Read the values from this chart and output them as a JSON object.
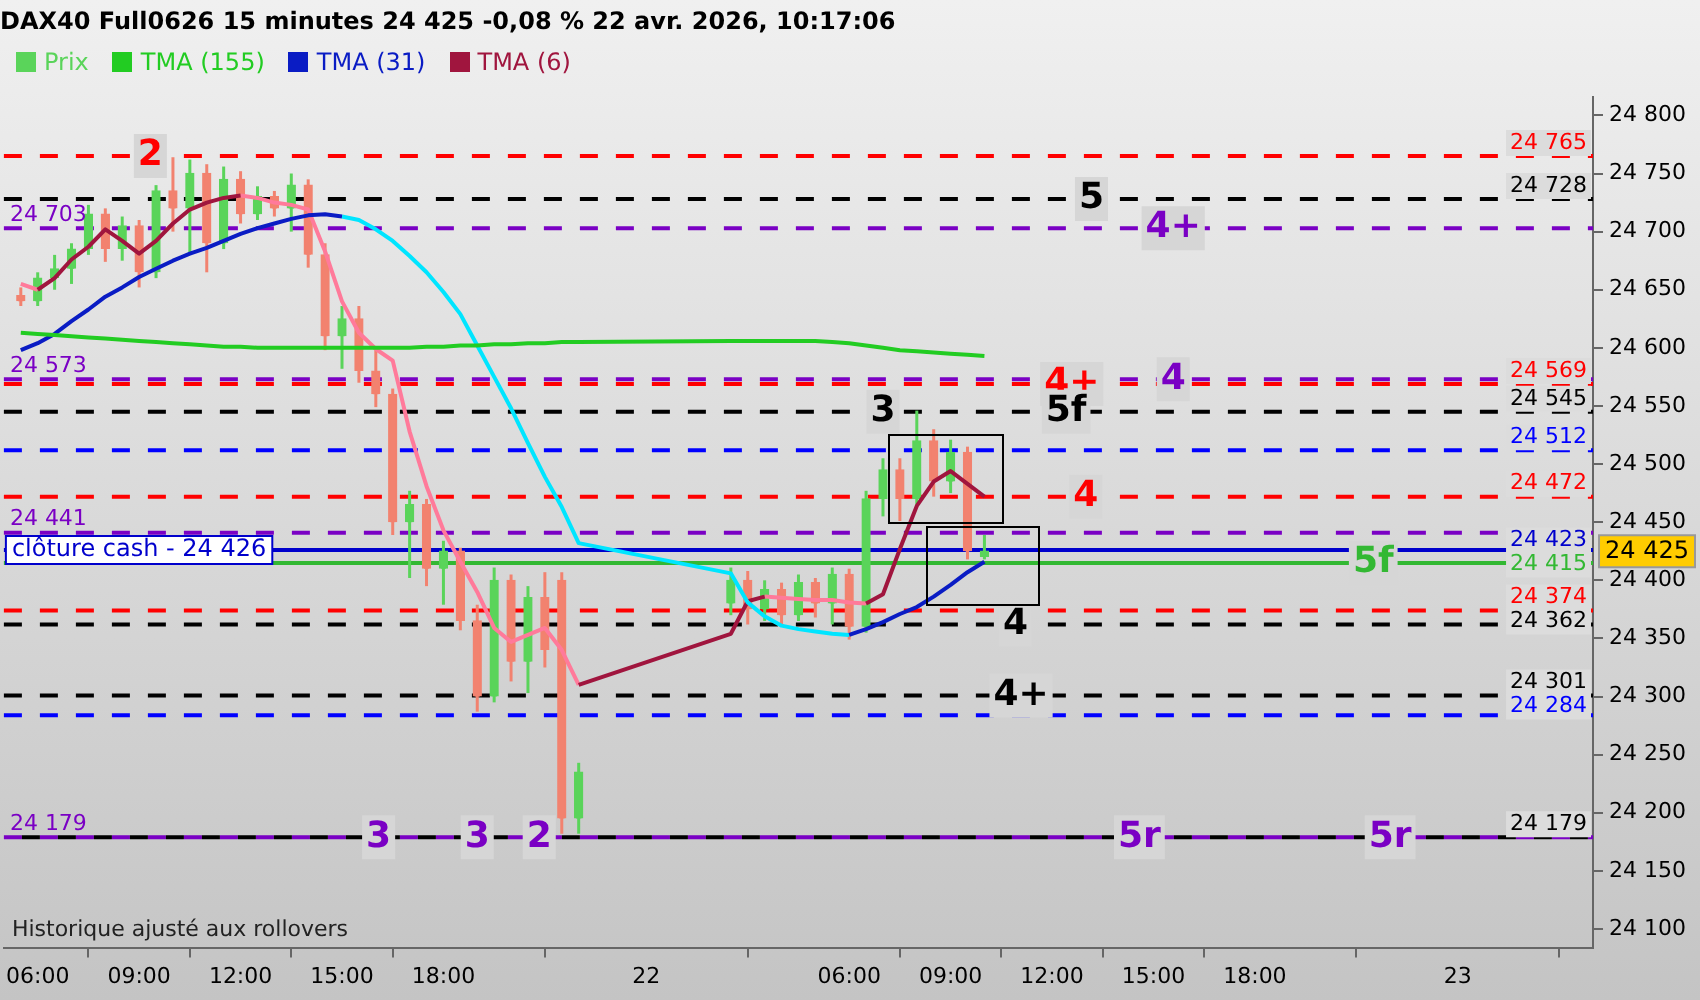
{
  "chart_data": {
    "type": "candlestick",
    "title": "DAX40 Full0626 15 minutes 24 425 -0,08 % 22 avr. 2026, 10:17:06",
    "x": [
      "2026-04-21T05:30",
      "2026-04-21T06:00",
      "2026-04-21T06:30",
      "2026-04-21T07:00",
      "2026-04-21T07:30",
      "2026-04-21T08:00",
      "2026-04-21T08:30",
      "2026-04-21T09:00",
      "2026-04-21T09:30",
      "2026-04-21T10:00",
      "2026-04-21T10:30",
      "2026-04-21T11:00",
      "2026-04-21T11:30",
      "2026-04-21T12:00",
      "2026-04-21T12:30",
      "2026-04-21T13:00",
      "2026-04-21T13:30",
      "2026-04-21T14:00",
      "2026-04-21T14:30",
      "2026-04-21T15:00",
      "2026-04-21T15:30",
      "2026-04-21T16:00",
      "2026-04-21T16:30",
      "2026-04-21T17:00",
      "2026-04-21T17:30",
      "2026-04-21T18:00",
      "2026-04-21T18:30",
      "2026-04-21T19:00",
      "2026-04-21T19:30",
      "2026-04-21T20:00",
      "2026-04-21T20:30",
      "2026-04-21T21:00",
      "2026-04-21T21:30",
      "2026-04-21T22:00",
      "2026-04-22T02:30",
      "2026-04-22T03:00",
      "2026-04-22T03:30",
      "2026-04-22T04:00",
      "2026-04-22T04:30",
      "2026-04-22T05:00",
      "2026-04-22T05:30",
      "2026-04-22T06:00",
      "2026-04-22T06:30",
      "2026-04-22T07:00",
      "2026-04-22T07:30",
      "2026-04-22T08:00",
      "2026-04-22T08:30",
      "2026-04-22T09:00",
      "2026-04-22T09:30",
      "2026-04-22T10:00"
    ],
    "series": [
      {
        "name": "Prix",
        "colors": [
          "#f2826f",
          "#5ad45a",
          "#5ad45a",
          "#5ad45a",
          "#5ad45a",
          "#f2826f",
          "#5ad45a",
          "#f2826f",
          "#5ad45a",
          "#f2826f",
          "#5ad45a",
          "#f2826f",
          "#5ad45a",
          "#f2826f",
          "#5ad45a",
          "#f2826f",
          "#5ad45a",
          "#f2826f",
          "#f2826f",
          "#5ad45a",
          "#f2826f",
          "#f2826f",
          "#f2826f",
          "#5ad45a",
          "#f2826f",
          "#5ad45a",
          "#f2826f",
          "#f2826f",
          "#5ad45a",
          "#f2826f",
          "#5ad45a",
          "#f2826f",
          "#f2826f",
          "#5ad45a",
          "#5ad45a",
          "#f2826f",
          "#5ad45a",
          "#f2826f",
          "#5ad45a",
          "#f2826f",
          "#5ad45a",
          "#f2826f",
          "#5ad45a",
          "#5ad45a",
          "#f2826f",
          "#5ad45a",
          "#f2826f",
          "#5ad45a",
          "#f2826f",
          "#5ad45a"
        ],
        "ohlc": [
          [
            24645,
            24652,
            24636,
            24640
          ],
          [
            24640,
            24665,
            24636,
            24660
          ],
          [
            24660,
            24680,
            24650,
            24668
          ],
          [
            24668,
            24690,
            24655,
            24685
          ],
          [
            24685,
            24723,
            24680,
            24715
          ],
          [
            24715,
            24720,
            24674,
            24685
          ],
          [
            24685,
            24713,
            24675,
            24705
          ],
          [
            24705,
            24710,
            24652,
            24665
          ],
          [
            24665,
            24740,
            24660,
            24735
          ],
          [
            24735,
            24764,
            24700,
            24720
          ],
          [
            24720,
            24762,
            24680,
            24750
          ],
          [
            24750,
            24758,
            24665,
            24690
          ],
          [
            24690,
            24756,
            24685,
            24745
          ],
          [
            24745,
            24752,
            24707,
            24715
          ],
          [
            24715,
            24739,
            24710,
            24730
          ],
          [
            24730,
            24735,
            24713,
            24720
          ],
          [
            24720,
            24750,
            24700,
            24740
          ],
          [
            24740,
            24745,
            24669,
            24680
          ],
          [
            24680,
            24690,
            24598,
            24610
          ],
          [
            24610,
            24636,
            24582,
            24625
          ],
          [
            24625,
            24636,
            24570,
            24580
          ],
          [
            24580,
            24598,
            24549,
            24560
          ],
          [
            24560,
            24565,
            24439,
            24450
          ],
          [
            24450,
            24477,
            24402,
            24465
          ],
          [
            24465,
            24470,
            24395,
            24410
          ],
          [
            24410,
            24434,
            24379,
            24425
          ],
          [
            24425,
            24428,
            24357,
            24365
          ],
          [
            24365,
            24379,
            24287,
            24300
          ],
          [
            24300,
            24411,
            24295,
            24400
          ],
          [
            24400,
            24405,
            24313,
            24330
          ],
          [
            24330,
            24395,
            24303,
            24385
          ],
          [
            24385,
            24407,
            24325,
            24340
          ],
          [
            24400,
            24407,
            24182,
            24195
          ],
          [
            24195,
            24243,
            24182,
            24235
          ],
          [
            24380,
            24411,
            24370,
            24400
          ],
          [
            24400,
            24408,
            24362,
            24375
          ],
          [
            24375,
            24400,
            24365,
            24392
          ],
          [
            24392,
            24398,
            24362,
            24370
          ],
          [
            24370,
            24405,
            24365,
            24398
          ],
          [
            24398,
            24402,
            24368,
            24380
          ],
          [
            24380,
            24411,
            24362,
            24405
          ],
          [
            24405,
            24410,
            24349,
            24360
          ],
          [
            24360,
            24477,
            24355,
            24470
          ],
          [
            24470,
            24505,
            24455,
            24495
          ],
          [
            24495,
            24505,
            24451,
            24470
          ],
          [
            24470,
            24546,
            24465,
            24520
          ],
          [
            24520,
            24530,
            24472,
            24485
          ],
          [
            24485,
            24521,
            24475,
            24510
          ],
          [
            24510,
            24515,
            24418,
            24425
          ],
          [
            24420,
            24439,
            24418,
            24425
          ]
        ]
      },
      {
        "name": "TMA (155)",
        "type": "line",
        "color": "#22cc22",
        "values": [
          24613,
          24612,
          24611,
          24610,
          24609,
          24608,
          24607,
          24606,
          24605,
          24604,
          24603,
          24602,
          24601,
          24601,
          24600,
          24600,
          24600,
          24600,
          24600,
          24600,
          24600,
          24600,
          24600,
          24600,
          24601,
          24601,
          24602,
          24602,
          24603,
          24603,
          24604,
          24604,
          24605,
          24605,
          24606,
          24606,
          24606,
          24606,
          24606,
          24606,
          24605,
          24604,
          24602,
          24600,
          24598,
          24597,
          24596,
          24595,
          24594,
          24593
        ]
      },
      {
        "name": "TMA (31)",
        "type": "line",
        "color": "#0a1cc4",
        "values": [
          24598,
          24604,
          24612,
          24623,
          24633,
          24644,
          24652,
          24661,
          24668,
          24675,
          24681,
          24686,
          24692,
          24698,
          24703,
          24707,
          24711,
          24714,
          24715,
          24713,
          null,
          null,
          null,
          null,
          null,
          null,
          null,
          null,
          null,
          null,
          null,
          null,
          null,
          null,
          null,
          null,
          null,
          null,
          null,
          null,
          null,
          24353,
          24358,
          24364,
          24371,
          24377,
          24386,
          24396,
          24407,
          24416
        ]
      },
      {
        "type": "line",
        "color": "#00e5ff",
        "values": [
          null,
          null,
          null,
          null,
          null,
          null,
          null,
          null,
          null,
          null,
          null,
          null,
          null,
          null,
          null,
          null,
          null,
          null,
          null,
          24713,
          24710,
          24702,
          24692,
          24679,
          24665,
          24648,
          24629,
          24602,
          24575,
          24548,
          24518,
          24489,
          24463,
          24432,
          24406,
          24381,
          24369,
          24361,
          24358,
          24356,
          24354,
          24353,
          null,
          null,
          null,
          null,
          null,
          null,
          null,
          null
        ]
      },
      {
        "name": "TMA (6)",
        "type": "line",
        "color": "#a0153e",
        "values": [
          null,
          24650,
          24660,
          24676,
          24687,
          24702,
          24692,
          24681,
          24692,
          24707,
          24719,
          24725,
          24729,
          24731,
          null,
          null,
          null,
          null,
          null,
          null,
          null,
          null,
          null,
          null,
          null,
          null,
          null,
          null,
          null,
          null,
          null,
          null,
          null,
          24310,
          24354,
          24382,
          24386,
          null,
          null,
          null,
          null,
          null,
          24380,
          24388,
          24427,
          24464,
          24485,
          24494,
          24483,
          24472
        ]
      },
      {
        "type": "line",
        "color": "#ff7a9a",
        "values": [
          24655,
          24650,
          null,
          null,
          null,
          null,
          null,
          null,
          null,
          null,
          null,
          null,
          null,
          24731,
          24729,
          24725,
          24723,
          24719,
          24683,
          24640,
          24613,
          24599,
          24589,
          24528,
          24481,
          24443,
          24416,
          24390,
          24359,
          24347,
          24353,
          24359,
          24340,
          24310,
          null,
          null,
          24386,
          24385,
          24384,
          24383,
          24383,
          24381,
          24380,
          null,
          null,
          null,
          null,
          null,
          null,
          null
        ]
      }
    ],
    "xlim": [
      "2026-04-21T05:00",
      "2026-04-23T04:00"
    ],
    "xticks": [
      {
        "value": "2026-04-21T06:00",
        "label": "06:00"
      },
      {
        "value": "2026-04-21T09:00",
        "label": "09:00"
      },
      {
        "value": "2026-04-21T12:00",
        "label": "12:00"
      },
      {
        "value": "2026-04-21T15:00",
        "label": "15:00"
      },
      {
        "value": "2026-04-21T18:00",
        "label": "18:00"
      },
      {
        "value": "2026-04-22T00:00",
        "label": "22"
      },
      {
        "value": "2026-04-22T06:00",
        "label": "06:00"
      },
      {
        "value": "2026-04-22T09:00",
        "label": "09:00"
      },
      {
        "value": "2026-04-22T12:00",
        "label": "12:00"
      },
      {
        "value": "2026-04-22T15:00",
        "label": "15:00"
      },
      {
        "value": "2026-04-22T18:00",
        "label": "18:00"
      },
      {
        "value": "2026-04-23T00:00",
        "label": "23"
      }
    ],
    "ylim": [
      24084,
      24816
    ],
    "yticks": [
      {
        "value": 24100,
        "label": "24 100"
      },
      {
        "value": 24150,
        "label": "24 150"
      },
      {
        "value": 24200,
        "label": "24 200"
      },
      {
        "value": 24250,
        "label": "24 250"
      },
      {
        "value": 24300,
        "label": "24 300"
      },
      {
        "value": 24350,
        "label": "24 350"
      },
      {
        "value": 24400,
        "label": "24 400"
      },
      {
        "value": 24450,
        "label": "24 450"
      },
      {
        "value": 24500,
        "label": "24 500"
      },
      {
        "value": 24550,
        "label": "24 550"
      },
      {
        "value": 24600,
        "label": "24 600"
      },
      {
        "value": 24650,
        "label": "24 650"
      },
      {
        "value": 24700,
        "label": "24 700"
      },
      {
        "value": 24750,
        "label": "24 750"
      },
      {
        "value": 24800,
        "label": "24 800"
      }
    ],
    "legend": "top left",
    "ref_lines": [
      {
        "axis": "y",
        "value": 24765,
        "label": "24 765",
        "color": "#ff0000",
        "line_style": "dashed"
      },
      {
        "axis": "y",
        "value": 24728,
        "label": "24 728",
        "color": "#000000",
        "line_style": "dashed"
      },
      {
        "axis": "y",
        "value": 24703,
        "color": "#7a00c4",
        "line_style": "dashed"
      },
      {
        "axis": "y",
        "value": 24573,
        "color": "#7a00c4",
        "line_style": "dashed"
      },
      {
        "axis": "y",
        "value": 24569,
        "label": "24 569",
        "color": "#ff0000",
        "line_style": "dashed"
      },
      {
        "axis": "y",
        "value": 24545,
        "label": "24 545",
        "color": "#000000",
        "line_style": "dashed"
      },
      {
        "axis": "y",
        "value": 24512,
        "label": "24 512",
        "color": "#0000ff",
        "line_style": "dashed"
      },
      {
        "axis": "y",
        "value": 24472,
        "label": "24 472",
        "color": "#ff0000",
        "line_style": "dashed"
      },
      {
        "axis": "y",
        "value": 24441,
        "color": "#7a00c4",
        "line_style": "dashed"
      },
      {
        "axis": "y",
        "value": 24426,
        "label": "clôture cash - 24 426",
        "color": "#0000cc",
        "line_style": "solid"
      },
      {
        "axis": "y",
        "value": 24415,
        "color": "#33b833",
        "line_style": "solid"
      },
      {
        "axis": "y",
        "value": 24374,
        "label": "24 374",
        "color": "#ff0000",
        "line_style": "dashed"
      },
      {
        "axis": "y",
        "value": 24362,
        "label": "24 362",
        "color": "#000000",
        "line_style": "dashed"
      },
      {
        "axis": "y",
        "value": 24301,
        "label": "24 301",
        "color": "#000000",
        "line_style": "dashed"
      },
      {
        "axis": "y",
        "value": 24284,
        "label": "24 284",
        "color": "#0000ff",
        "line_style": "dashed"
      },
      {
        "axis": "y",
        "value": 24179,
        "color": "#7a00c4",
        "line_style": "dashed"
      },
      {
        "axis": "y",
        "value": 24179,
        "label": "24 179",
        "color": "#000000",
        "line_style": "dashed"
      }
    ],
    "annotations": [
      "Historique ajusté aux rollovers",
      "24 425",
      {
        "text": "24 703",
        "x": "2026-04-21T05:00",
        "y": 24703
      },
      {
        "text": "24 573",
        "x": "2026-04-21T05:00",
        "y": 24573
      },
      {
        "text": "24 441",
        "x": "2026-04-21T05:00",
        "y": 24441
      },
      {
        "text": "24 179",
        "x": "2026-04-21T05:00",
        "y": 24179
      },
      {
        "text": "24 423",
        "x": "2026-04-23T04:00",
        "y": 24423
      },
      {
        "text": "24 415",
        "x": "2026-04-23T04:00",
        "y": 24415
      },
      {
        "text": "2",
        "x": "2026-04-21T09:20",
        "y": 24765
      },
      {
        "text": "5",
        "x": "2026-04-22T13:10",
        "y": 24728
      },
      {
        "text": "4+",
        "x": "2026-04-22T15:35",
        "y": 24703
      },
      {
        "text": "4+",
        "x": "2026-04-22T12:35",
        "y": 24569
      },
      {
        "text": "4",
        "x": "2026-04-22T15:35",
        "y": 24573
      },
      {
        "text": "3",
        "x": "2026-04-22T07:00",
        "y": 24545
      },
      {
        "text": "5f",
        "x": "2026-04-22T12:25",
        "y": 24545
      },
      {
        "text": "4",
        "x": "2026-04-22T13:00",
        "y": 24472
      },
      {
        "text": "5f",
        "x": "2026-04-22T21:30",
        "y": 24415
      },
      {
        "text": "4",
        "x": "2026-04-22T10:55",
        "y": 24362
      },
      {
        "text": "4+",
        "x": "2026-04-22T11:05",
        "y": 24301
      },
      {
        "text": "3",
        "x": "2026-04-21T16:05",
        "y": 24179
      },
      {
        "text": "3",
        "x": "2026-04-21T19:00",
        "y": 24179
      },
      {
        "text": "2",
        "x": "2026-04-21T20:50",
        "y": 24179
      },
      {
        "text": "5r",
        "x": "2026-04-22T14:35",
        "y": 24179
      },
      {
        "text": "5r",
        "x": "2026-04-22T22:00",
        "y": 24179
      }
    ]
  }
}
